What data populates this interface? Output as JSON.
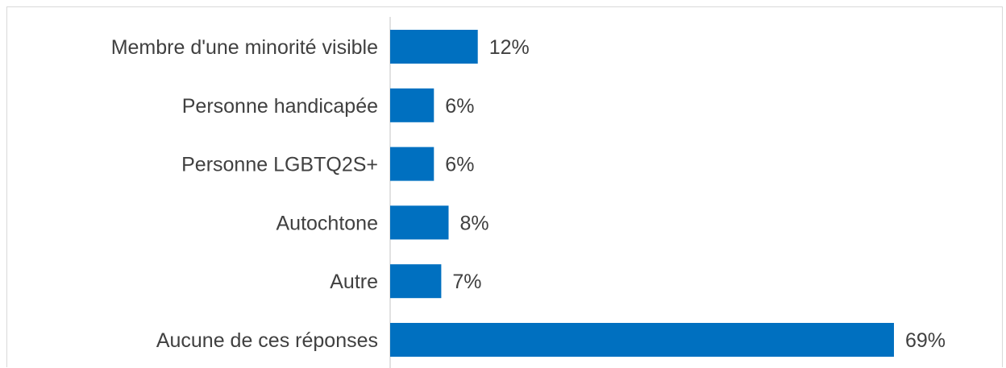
{
  "chart_data": {
    "type": "bar",
    "orientation": "horizontal",
    "categories": [
      "Membre d'une minorité visible",
      "Personne handicapée",
      "Personne LGBTQ2S+",
      "Autochtone",
      "Autre",
      "Aucune de ces réponses"
    ],
    "values": [
      12,
      6,
      6,
      8,
      7,
      69
    ],
    "value_labels": [
      "12%",
      "6%",
      "6%",
      "8%",
      "7%",
      "69%"
    ],
    "unit": "%",
    "bar_color": "#0070C0",
    "text_color": "#404040",
    "axis_color": "#d9d9d9",
    "grid": false,
    "legend": "none"
  }
}
